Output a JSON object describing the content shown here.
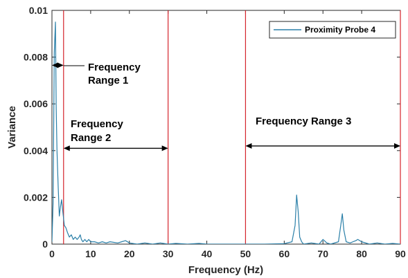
{
  "chart_data": {
    "type": "line",
    "xlabel": "Frequency (Hz)",
    "ylabel": "Variance",
    "xlim": [
      0,
      90
    ],
    "ylim": [
      0,
      0.01
    ],
    "x_ticks": [
      0,
      10,
      20,
      30,
      40,
      50,
      60,
      70,
      80,
      90
    ],
    "x_tick_labels": [
      "0",
      "10",
      "20",
      "30",
      "40",
      "50",
      "60",
      "70",
      "80",
      "90"
    ],
    "y_ticks": [
      0,
      0.002,
      0.004,
      0.006,
      0.008,
      0.01
    ],
    "y_tick_labels": [
      "0",
      "0.002",
      "0.004",
      "0.006",
      "0.008",
      "0.01"
    ],
    "grid": false,
    "legend_position": "top-right",
    "series": [
      {
        "name": "Proximity Probe 4",
        "color": "#2a7fa8",
        "x": [
          0,
          0.3,
          0.6,
          0.9,
          1.1,
          1.3,
          1.6,
          1.9,
          2.2,
          2.5,
          2.8,
          3.2,
          3.6,
          4.0,
          4.5,
          5.0,
          5.5,
          6.0,
          6.5,
          7.0,
          7.3,
          7.6,
          8.0,
          8.5,
          9.0,
          9.5,
          10,
          11,
          12,
          13,
          14,
          15,
          17,
          18,
          19,
          20,
          22,
          24,
          26,
          28,
          30,
          32,
          35,
          38,
          40,
          45,
          50,
          55,
          60,
          62,
          62.8,
          63.2,
          63.6,
          64.0,
          64.5,
          65,
          67,
          69,
          70,
          71,
          72,
          74,
          74.6,
          75.0,
          75.4,
          76,
          77,
          78.5,
          79,
          80,
          82,
          84,
          86,
          88,
          90
        ],
        "y": [
          0.0001,
          0.0018,
          0.0082,
          0.0095,
          0.0058,
          0.004,
          0.0025,
          0.0012,
          0.0016,
          0.0019,
          0.0014,
          0.0008,
          0.0007,
          0.0005,
          0.0003,
          0.0004,
          0.0002,
          0.0003,
          0.0002,
          0.0003,
          0.0004,
          0.0002,
          0.0001,
          0.0002,
          0.0001,
          0.0002,
          0.0001,
          0.0001,
          5e-05,
          0.0001,
          5e-05,
          0.0001,
          5e-05,
          0.0001,
          0.00015,
          5e-05,
          0.0,
          5e-05,
          0.0,
          5e-05,
          0.0,
          3e-05,
          0.0,
          3e-05,
          0.0,
          0.0,
          0.0,
          0.0,
          2e-05,
          0.0001,
          0.0008,
          0.0021,
          0.0014,
          0.0003,
          0.0001,
          0.0,
          5e-05,
          0.0,
          0.0002,
          5e-05,
          0.0,
          0.0001,
          0.0008,
          0.0013,
          0.0006,
          0.0001,
          5e-05,
          0.00015,
          0.0002,
          0.0001,
          0.0,
          5e-05,
          0.0,
          3e-05,
          0.0
        ]
      }
    ],
    "vertical_lines": [
      {
        "x": 3,
        "color": "#d4232b"
      },
      {
        "x": 30,
        "color": "#d4232b"
      },
      {
        "x": 50,
        "color": "#d4232b"
      },
      {
        "x": 90,
        "color": "#d4232b"
      }
    ],
    "annotations": [
      {
        "id": "range1",
        "lines": [
          "Frequency",
          "Range 1"
        ],
        "arrow_x": [
          0,
          3
        ],
        "arrow_y": 0.00765
      },
      {
        "id": "range2",
        "lines": [
          "Frequency",
          "Range 2"
        ],
        "arrow_x": [
          3,
          30
        ],
        "arrow_y": 0.0041
      },
      {
        "id": "range3",
        "lines": [
          "Frequency Range 3"
        ],
        "arrow_x": [
          50,
          90
        ],
        "arrow_y": 0.0042
      }
    ]
  }
}
